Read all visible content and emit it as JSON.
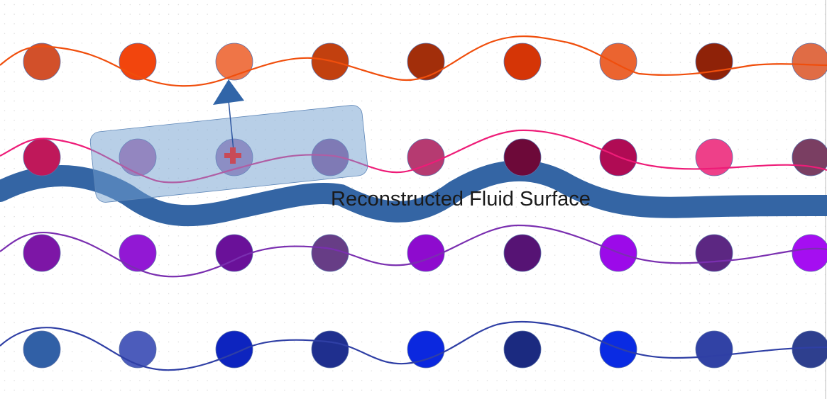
{
  "diagram": {
    "surface_label": "Reconstructed Fluid Surface",
    "surface_color": "#3465a4",
    "selection_color": "#729fcf",
    "rows": [
      {
        "name": "orange",
        "line_color": "#f04e0c",
        "particle_colors": [
          "#d2502a",
          "#f2450d",
          "#ef7547",
          "#c2400f",
          "#a22e0a",
          "#d53506",
          "#eb6430",
          "#8f2208",
          "#e06c45"
        ]
      },
      {
        "name": "pink",
        "line_color": "#ee1c78",
        "particle_colors": [
          "#bf185a",
          "#b56cb0",
          "#a77cb8",
          "#8c549b",
          "#b63a71",
          "#6d0939",
          "#b00b54",
          "#ee4089",
          "#7a3e62"
        ]
      },
      {
        "name": "purple",
        "line_color": "#7a2fb0",
        "particle_colors": [
          "#7d16a6",
          "#9218d4",
          "#6a1199",
          "#673d86",
          "#8e0bce",
          "#561374",
          "#9c0ae9",
          "#5c2782",
          "#a50ef1"
        ]
      },
      {
        "name": "blue",
        "line_color": "#2f3fa5",
        "particle_colors": [
          "#3160a6",
          "#4c5cbb",
          "#0d24bf",
          "#1f2f8e",
          "#0b28df",
          "#1b2a80",
          "#0a2be3",
          "#3142a5",
          "#2e3f8e"
        ]
      }
    ]
  }
}
